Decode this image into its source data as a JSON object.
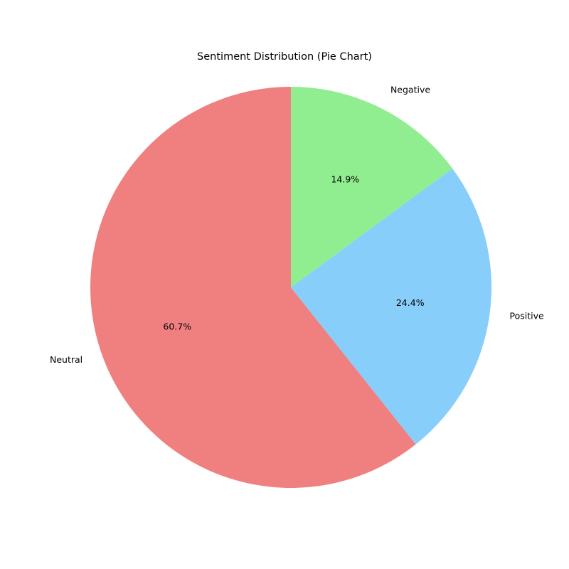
{
  "chart_data": {
    "type": "pie",
    "title": "Sentiment Distribution (Pie Chart)",
    "start_angle_deg": 90,
    "direction": "counterclockwise",
    "slices": [
      {
        "label": "Neutral",
        "value": 60.7,
        "pct_label": "60.7%",
        "color": "#F08080"
      },
      {
        "label": "Positive",
        "value": 24.4,
        "pct_label": "24.4%",
        "color": "#87CEFA"
      },
      {
        "label": "Negative",
        "value": 14.9,
        "pct_label": "14.9%",
        "color": "#90EE90"
      }
    ]
  }
}
